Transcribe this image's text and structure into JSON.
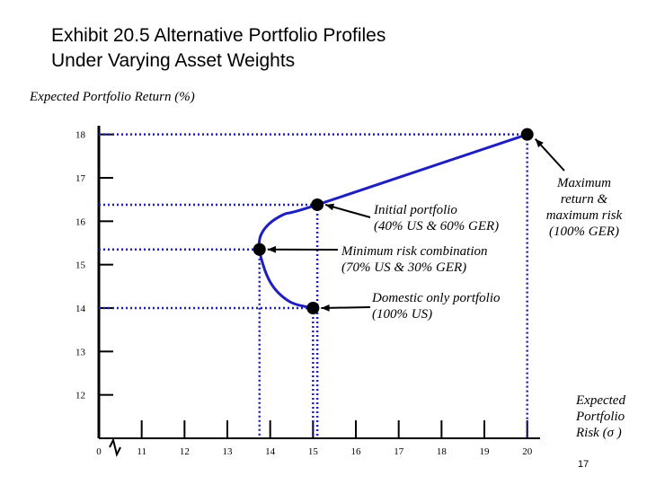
{
  "chart_data": {
    "type": "line",
    "title": [
      "Exhibit 20.5  Alternative Portfolio Profiles",
      "Under Varying Asset Weights"
    ],
    "y_label": "Expected Portfolio Return (%)",
    "x_label": [
      "Expected",
      "Portfolio",
      "Risk (σ )"
    ],
    "page_number": "17",
    "xlim": [
      10,
      20.3
    ],
    "ylim": [
      11,
      18.2
    ],
    "xticks": [
      {
        "value": 10,
        "label": "0"
      },
      11,
      12,
      13,
      14,
      15,
      16,
      17,
      18,
      19,
      20
    ],
    "yticks": [
      12,
      13,
      14,
      15,
      16,
      17,
      18
    ],
    "color": "#1f1fbf",
    "frontier": {
      "x": [
        15,
        14.45,
        14.0,
        13.75,
        13.85,
        14.3,
        15.1,
        20
      ],
      "y": [
        14,
        14.15,
        14.6,
        15.35,
        15.8,
        16.15,
        16.38,
        18
      ]
    },
    "points": {
      "x": [
        15,
        13.75,
        15.1,
        20
      ],
      "y": [
        14,
        15.35,
        16.38,
        18
      ]
    },
    "annotations": [
      {
        "lines": [
          "Domestic only portfolio",
          "(100% US)"
        ]
      },
      {
        "lines": [
          "Minimum risk combination",
          "(70% US & 30% GER)"
        ]
      },
      {
        "lines": [
          "Initial portfolio",
          "(40% US & 60% GER)"
        ]
      },
      {
        "lines": [
          "Maximum",
          "return &",
          "maximum risk",
          "(100% GER)"
        ]
      }
    ]
  }
}
